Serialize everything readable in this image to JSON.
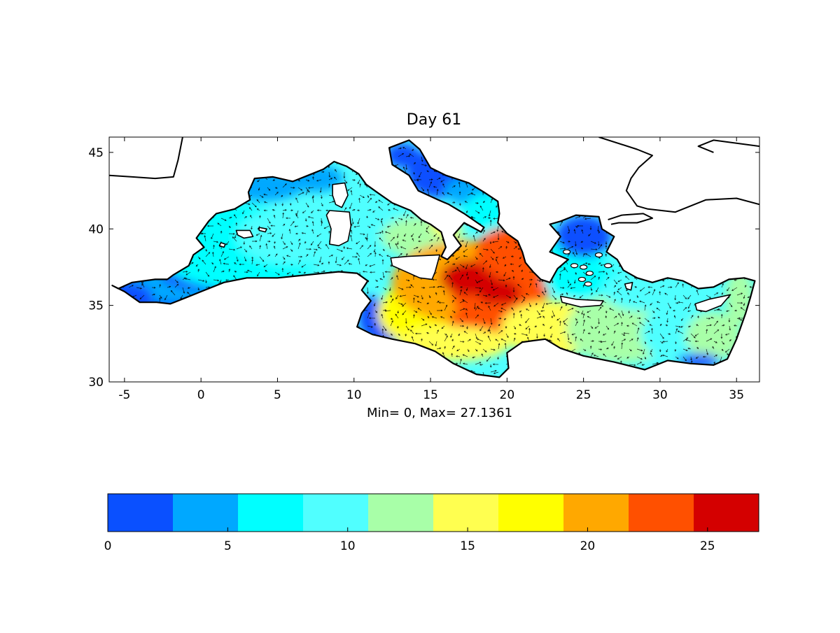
{
  "title": "Day 61",
  "stats_label": "Min= 0,  Max= 27.1361",
  "map": {
    "lon_range": [
      -6,
      36.5
    ],
    "lat_range": [
      30,
      46
    ],
    "lon_ticks": [
      -5,
      0,
      5,
      10,
      15,
      20,
      25,
      30,
      35
    ],
    "lat_ticks": [
      30,
      35,
      40,
      45
    ],
    "field_min": 0,
    "field_max": 27.1361
  },
  "colorbar": {
    "range": [
      0,
      27.1361
    ],
    "ticks": [
      0,
      5,
      10,
      15,
      20,
      25
    ],
    "colors": [
      "#0a50ff",
      "#00a8ff",
      "#00ffff",
      "#50ffff",
      "#a8ffa8",
      "#ffff50",
      "#ffff00",
      "#ffa800",
      "#ff5000",
      "#d40000"
    ]
  }
}
